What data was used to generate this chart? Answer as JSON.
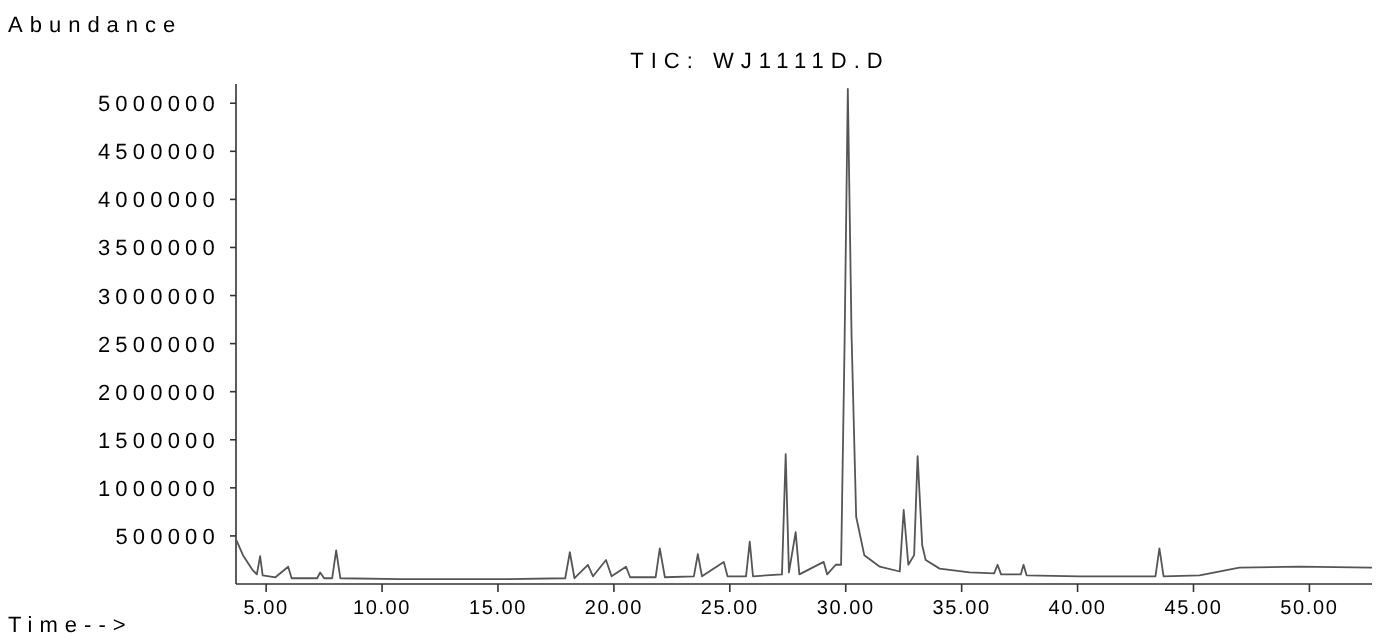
{
  "chart_data": {
    "type": "line",
    "title": "TIC: WJ1111D.D",
    "xlabel": "Time-->",
    "ylabel": "Abundance",
    "x": [
      3.71,
      4.0,
      4.4,
      4.6,
      4.74,
      4.85,
      5.4,
      5.95,
      6.1,
      7.2,
      7.33,
      7.5,
      7.85,
      8.02,
      8.2,
      10.78,
      15.09,
      17.9,
      18.1,
      18.3,
      18.88,
      19.1,
      19.66,
      19.9,
      20.52,
      20.7,
      21.8,
      21.98,
      22.2,
      23.45,
      23.62,
      23.8,
      24.74,
      24.9,
      25.7,
      25.86,
      26.0,
      27.25,
      27.41,
      27.55,
      27.84,
      28.0,
      29.05,
      29.2,
      29.57,
      29.8,
      29.95,
      30.09,
      30.25,
      30.45,
      30.8,
      31.47,
      32.33,
      32.5,
      32.7,
      32.95,
      33.1,
      33.3,
      33.45,
      34.05,
      35.34,
      36.4,
      36.55,
      36.7,
      37.55,
      37.67,
      37.8,
      40.09,
      43.36,
      43.53,
      43.71,
      45.26,
      46.98,
      49.57,
      52.67
    ],
    "series": [
      {
        "color": "#555555",
        "values": [
          460000,
          300000,
          150000,
          100000,
          290000,
          90000,
          70000,
          180000,
          60000,
          60000,
          120000,
          60000,
          60000,
          350000,
          60000,
          50000,
          50000,
          60000,
          330000,
          60000,
          200000,
          80000,
          250000,
          80000,
          180000,
          70000,
          70000,
          370000,
          70000,
          80000,
          310000,
          80000,
          230000,
          80000,
          80000,
          440000,
          80000,
          100000,
          1350000,
          120000,
          540000,
          100000,
          230000,
          100000,
          200000,
          200000,
          2500000,
          5150000,
          2600000,
          700000,
          300000,
          180000,
          130000,
          770000,
          200000,
          300000,
          1330000,
          400000,
          250000,
          160000,
          120000,
          110000,
          200000,
          100000,
          100000,
          200000,
          90000,
          80000,
          80000,
          370000,
          80000,
          90000,
          170000,
          180000,
          170000
        ]
      }
    ],
    "xlim": [
      3.7,
      52.7
    ],
    "xticks": [
      {
        "value": 5,
        "label": "5.00"
      },
      {
        "value": 10,
        "label": "10.00"
      },
      {
        "value": 15,
        "label": "15.00"
      },
      {
        "value": 20,
        "label": "20.00"
      },
      {
        "value": 25,
        "label": "25.00"
      },
      {
        "value": 30,
        "label": "30.00"
      },
      {
        "value": 35,
        "label": "35.00"
      },
      {
        "value": 40,
        "label": "40.00"
      },
      {
        "value": 45,
        "label": "45.00"
      },
      {
        "value": 50,
        "label": "50.00"
      }
    ],
    "ylim": [
      0,
      5200000
    ],
    "yticks": [
      500000,
      1000000,
      1500000,
      2000000,
      2500000,
      3000000,
      3500000,
      4000000,
      4500000,
      5000000
    ]
  }
}
